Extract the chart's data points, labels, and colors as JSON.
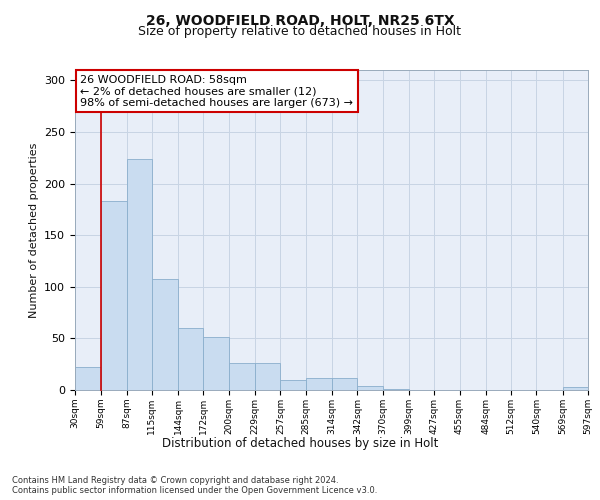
{
  "title1": "26, WOODFIELD ROAD, HOLT, NR25 6TX",
  "title2": "Size of property relative to detached houses in Holt",
  "xlabel": "Distribution of detached houses by size in Holt",
  "ylabel": "Number of detached properties",
  "bar_left_edges": [
    30,
    59,
    87,
    115,
    144,
    172,
    200,
    229,
    257,
    285,
    314,
    342,
    370,
    399,
    427,
    455,
    484,
    512,
    540,
    569
  ],
  "bar_widths": [
    29,
    28,
    28,
    29,
    28,
    28,
    29,
    28,
    28,
    29,
    28,
    28,
    29,
    28,
    28,
    29,
    28,
    28,
    29,
    28
  ],
  "bar_heights": [
    22,
    183,
    224,
    108,
    60,
    51,
    26,
    26,
    10,
    12,
    12,
    4,
    1,
    0,
    0,
    0,
    0,
    0,
    0,
    3
  ],
  "tick_labels": [
    "30sqm",
    "59sqm",
    "87sqm",
    "115sqm",
    "144sqm",
    "172sqm",
    "200sqm",
    "229sqm",
    "257sqm",
    "285sqm",
    "314sqm",
    "342sqm",
    "370sqm",
    "399sqm",
    "427sqm",
    "455sqm",
    "484sqm",
    "512sqm",
    "540sqm",
    "569sqm",
    "597sqm"
  ],
  "bar_color": "#c9dcf0",
  "bar_edge_color": "#8aaecc",
  "grid_color": "#c8d4e4",
  "bg_color": "#e8eef8",
  "property_line_x": 59,
  "property_line_color": "#cc0000",
  "annotation_line1": "26 WOODFIELD ROAD: 58sqm",
  "annotation_line2": "← 2% of detached houses are smaller (12)",
  "annotation_line3": "98% of semi-detached houses are larger (673) →",
  "annotation_box_color": "#ffffff",
  "annotation_border_color": "#cc0000",
  "ylim": [
    0,
    310
  ],
  "yticks": [
    0,
    50,
    100,
    150,
    200,
    250,
    300
  ],
  "footer1": "Contains HM Land Registry data © Crown copyright and database right 2024.",
  "footer2": "Contains public sector information licensed under the Open Government Licence v3.0."
}
